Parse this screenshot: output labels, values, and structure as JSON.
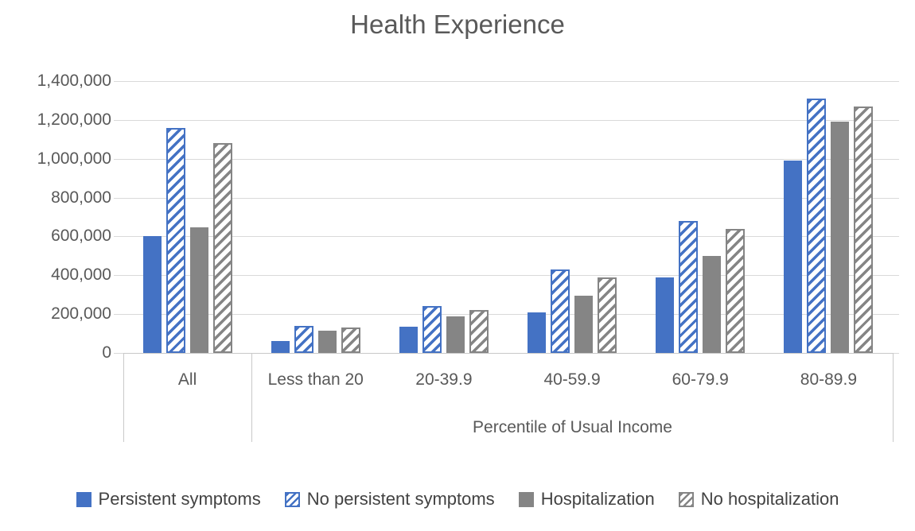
{
  "title": "Health Experience",
  "colors": {
    "series_blue": "#4472C4",
    "series_gray": "#858585",
    "gridline": "#D9D9D9",
    "axis_line": "#C9C9C9",
    "title_text": "#595959",
    "axis_text": "#595959",
    "legend_text": "#424242"
  },
  "chart_data": {
    "type": "bar",
    "title": "Health Experience",
    "xlabel": "Percentile of Usual Income",
    "xlabel_note": "x-axis title spans only the five income-percentile categories, not the 'All' category",
    "ylabel": "",
    "categories": [
      "All",
      "Less than 20",
      "20-39.9",
      "40-59.9",
      "60-79.9",
      "80-89.9"
    ],
    "series": [
      {
        "name": "Persistent symptoms",
        "style": "solid-blue",
        "values": [
          600000,
          60000,
          135000,
          210000,
          390000,
          990000
        ]
      },
      {
        "name": "No persistent symptoms",
        "style": "hatched-blue",
        "values": [
          1160000,
          140000,
          240000,
          430000,
          680000,
          1310000
        ]
      },
      {
        "name": "Hospitalization",
        "style": "solid-gray",
        "values": [
          645000,
          115000,
          190000,
          295000,
          500000,
          1190000
        ]
      },
      {
        "name": "No hospitalization",
        "style": "hatched-gray",
        "values": [
          1080000,
          130000,
          220000,
          390000,
          640000,
          1270000
        ]
      }
    ],
    "ylim": [
      0,
      1400000
    ],
    "y_tick_step": 200000,
    "y_tick_labels": [
      "0",
      "200,000",
      "400,000",
      "600,000",
      "800,000",
      "1,000,000",
      "1,200,000",
      "1,400,000"
    ],
    "grid": true,
    "legend_position": "bottom",
    "hatch_direction": "diagonal-up"
  }
}
